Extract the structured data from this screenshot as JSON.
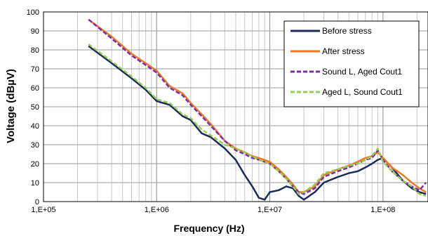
{
  "chart_data": {
    "type": "line",
    "title": "",
    "xlabel": "Frequency (Hz)",
    "ylabel": "Voltage (dBµV)",
    "x_scale": "log",
    "xlim": [
      100000,
      250000000
    ],
    "ylim": [
      0,
      100
    ],
    "grid": true,
    "legend_position": "top-right",
    "x_ticks": [
      {
        "value": 100000,
        "label": "1,E+05"
      },
      {
        "value": 1000000,
        "label": "1,E+06"
      },
      {
        "value": 10000000,
        "label": "1,E+07"
      },
      {
        "value": 100000000,
        "label": "1,E+08"
      }
    ],
    "y_ticks": [
      0,
      10,
      20,
      30,
      40,
      50,
      60,
      70,
      80,
      90,
      100
    ],
    "series": [
      {
        "name": "Before stress",
        "color": "#1f2a5c",
        "dash": "solid",
        "x": [
          250000,
          400000,
          600000,
          800000,
          1000000,
          1300000,
          1700000,
          2000000,
          2500000,
          3000000,
          4000000,
          5000000,
          6000000,
          7000000,
          8000000,
          9000000,
          10000000,
          12000000,
          14000000,
          16000000,
          18000000,
          20000000,
          25000000,
          30000000,
          40000000,
          50000000,
          60000000,
          70000000,
          80000000,
          90000000,
          100000000,
          120000000,
          150000000,
          180000000,
          210000000,
          240000000
        ],
        "y": [
          82,
          73,
          65,
          59,
          53,
          51,
          45,
          43,
          36,
          34,
          28,
          22,
          14,
          8,
          2,
          1,
          5,
          6,
          8,
          7,
          3,
          1,
          5,
          10,
          13,
          15,
          16,
          18,
          20,
          22,
          23,
          18,
          11,
          7,
          5,
          4
        ]
      },
      {
        "name": "After stress",
        "color": "#f07820",
        "dash": "solid",
        "x": [
          250000,
          400000,
          600000,
          800000,
          1000000,
          1300000,
          1700000,
          2000000,
          2500000,
          3000000,
          4000000,
          5000000,
          6000000,
          7000000,
          8000000,
          10000000,
          12000000,
          14000000,
          16000000,
          18000000,
          20000000,
          25000000,
          30000000,
          40000000,
          50000000,
          60000000,
          70000000,
          80000000,
          90000000,
          100000000,
          120000000,
          150000000,
          180000000,
          210000000,
          240000000
        ],
        "y": [
          96,
          87,
          78,
          73,
          69,
          61,
          57,
          52,
          46,
          41,
          32,
          28,
          26,
          24,
          23,
          21,
          17,
          13,
          9,
          5,
          5,
          8,
          14,
          17,
          19,
          21,
          23,
          24,
          26,
          23,
          18,
          14,
          10,
          7,
          5
        ]
      },
      {
        "name": "Sound L, Aged Cout1",
        "color": "#7a2fb0",
        "dash": "dashed",
        "x": [
          250000,
          400000,
          600000,
          800000,
          1000000,
          1300000,
          1700000,
          2000000,
          2500000,
          3000000,
          4000000,
          5000000,
          6000000,
          7000000,
          8000000,
          10000000,
          12000000,
          14000000,
          16000000,
          18000000,
          20000000,
          25000000,
          30000000,
          40000000,
          50000000,
          60000000,
          70000000,
          80000000,
          90000000,
          100000000,
          120000000,
          150000000,
          180000000,
          210000000,
          240000000
        ],
        "y": [
          96,
          86,
          77,
          72,
          68,
          60,
          56,
          51,
          45,
          40,
          32,
          27,
          25,
          23,
          22,
          20,
          16,
          12,
          8,
          5,
          4,
          7,
          13,
          16,
          18,
          20,
          22,
          23,
          27,
          22,
          16,
          11,
          8,
          6,
          10
        ]
      },
      {
        "name": "Aged L, Sound Cout1",
        "color": "#92d050",
        "dash": "dashed",
        "x": [
          250000,
          400000,
          600000,
          800000,
          1000000,
          1300000,
          1700000,
          2000000,
          2500000,
          3000000,
          4000000,
          5000000,
          6000000,
          7000000,
          8000000,
          10000000,
          12000000,
          14000000,
          16000000,
          18000000,
          20000000,
          25000000,
          30000000,
          40000000,
          50000000,
          60000000,
          70000000,
          80000000,
          90000000,
          100000000,
          120000000,
          150000000,
          180000000,
          210000000,
          240000000
        ],
        "y": [
          83,
          74,
          66,
          60,
          54,
          52,
          46,
          44,
          38,
          35,
          30,
          28,
          26,
          24,
          22,
          20,
          16,
          12,
          8,
          4,
          5,
          9,
          15,
          17,
          19,
          20,
          22,
          24,
          28,
          21,
          16,
          11,
          8,
          4,
          3
        ]
      }
    ]
  }
}
